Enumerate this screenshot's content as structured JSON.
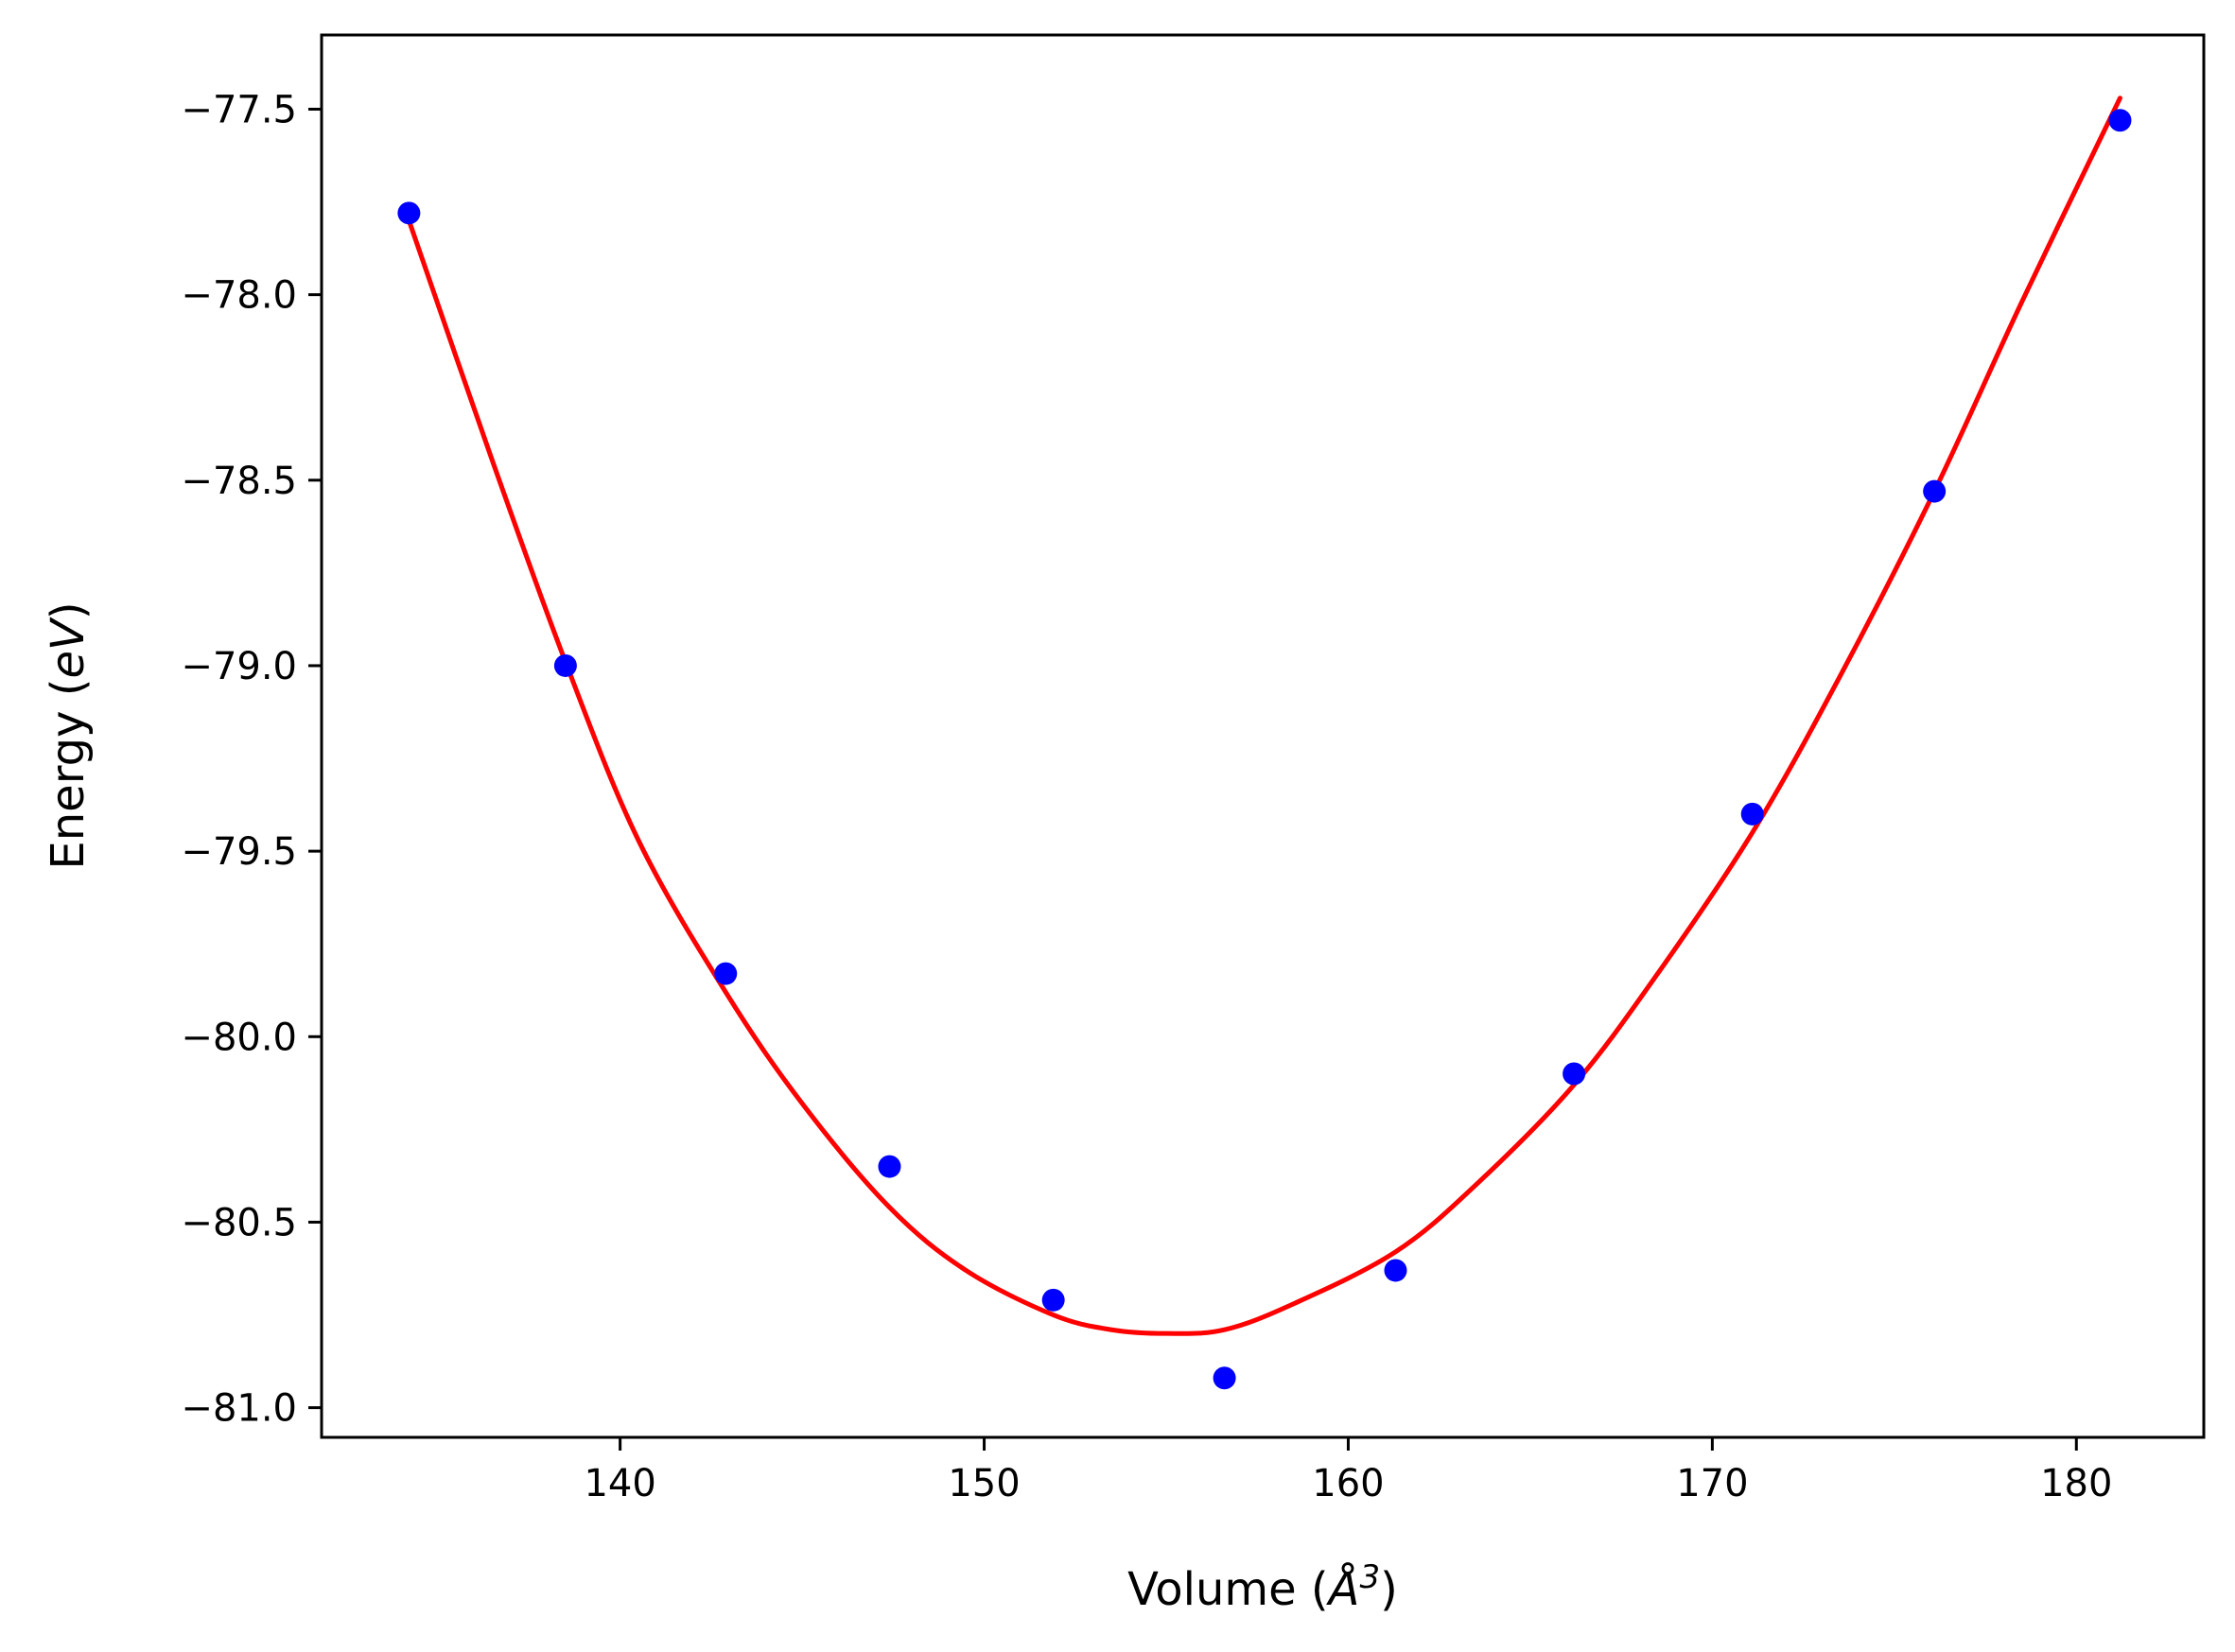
{
  "chart_data": {
    "type": "scatter",
    "xlabel": "Volume (Å³)",
    "xlabel_parts": {
      "prefix": "Volume (",
      "symbol": "Å",
      "superscript": "3",
      "suffix": ")"
    },
    "ylabel": "Energy (eV)",
    "ylabel_parts": {
      "prefix": "Energy (",
      "unit": "eV",
      "suffix": ")"
    },
    "xlim": [
      131.8,
      183.5
    ],
    "ylim": [
      -81.08,
      -77.3
    ],
    "xticks": [
      140,
      150,
      160,
      170,
      180
    ],
    "xtick_labels": [
      "140",
      "150",
      "160",
      "170",
      "180"
    ],
    "yticks": [
      -77.5,
      -78.0,
      -78.5,
      -79.0,
      -79.5,
      -80.0,
      -80.5,
      -81.0
    ],
    "ytick_labels": [
      "−77.5",
      "−78.0",
      "−78.5",
      "−79.0",
      "−79.5",
      "−80.0",
      "−80.5",
      "−81.0"
    ],
    "grid": false,
    "legend": false,
    "series": [
      {
        "kind": "points",
        "color": "#0000ff",
        "x": [
          134.2,
          138.5,
          142.9,
          147.4,
          151.9,
          156.6,
          161.3,
          166.2,
          171.1,
          176.1,
          181.2
        ],
        "y": [
          -77.78,
          -79.0,
          -79.83,
          -80.35,
          -80.71,
          -80.92,
          -80.63,
          -80.1,
          -79.4,
          -78.53,
          -77.53
        ]
      },
      {
        "kind": "fit-curve",
        "color": "#ff0000",
        "x": [
          134.2,
          136.5,
          138.5,
          140.5,
          142.9,
          145.0,
          147.4,
          149.5,
          151.9,
          153.5,
          155.0,
          156.6,
          158.5,
          161.3,
          163.5,
          166.2,
          168.5,
          171.1,
          173.5,
          176.1,
          178.5,
          181.2
        ],
        "y": [
          -77.8,
          -78.45,
          -78.99,
          -79.47,
          -79.88,
          -80.18,
          -80.46,
          -80.63,
          -80.75,
          -80.79,
          -80.8,
          -80.79,
          -80.72,
          -80.58,
          -80.4,
          -80.13,
          -79.83,
          -79.45,
          -79.03,
          -78.53,
          -78.02,
          -77.47
        ]
      }
    ]
  }
}
